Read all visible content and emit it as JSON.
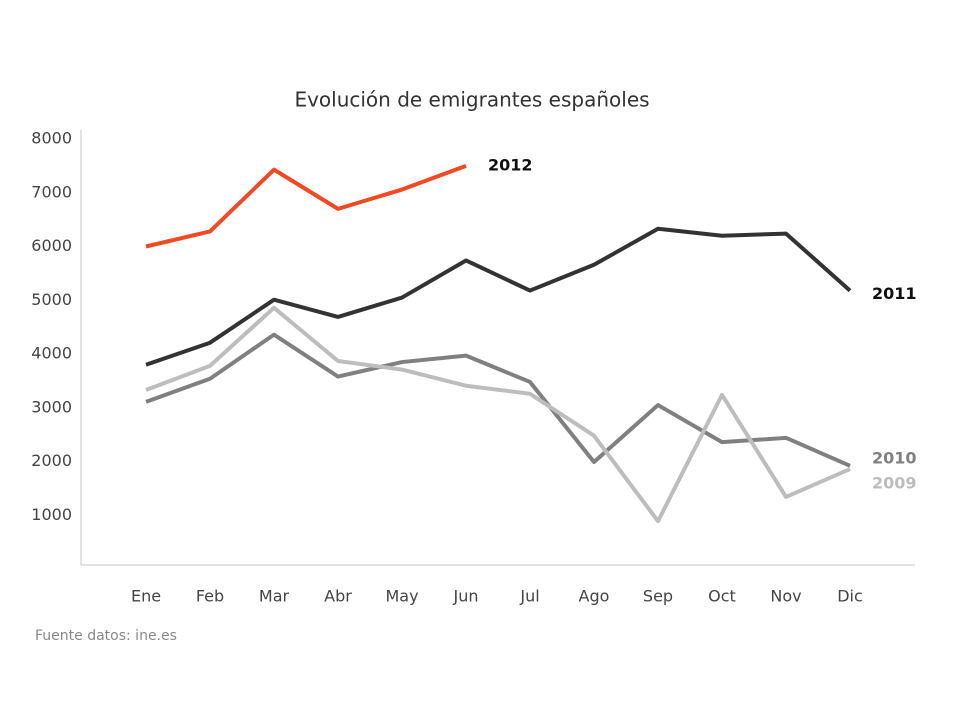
{
  "chart_data": {
    "type": "line",
    "title": "Evolución de emigrantes españoles",
    "source": "Fuente datos: ine.es",
    "categories": [
      "Ene",
      "Feb",
      "Mar",
      "Abr",
      "May",
      "Jun",
      "Jul",
      "Ago",
      "Sep",
      "Oct",
      "Nov",
      "Dic"
    ],
    "series": [
      {
        "name": "2012",
        "color": "#f04a23",
        "values": [
          6000,
          6280,
          7430,
          6700,
          7060,
          7500,
          null,
          null,
          null,
          null,
          null,
          null
        ]
      },
      {
        "name": "2011",
        "color": "#333333",
        "values": [
          3800,
          4210,
          5010,
          4690,
          5050,
          5740,
          5180,
          5660,
          6330,
          6200,
          6240,
          5180
        ]
      },
      {
        "name": "2010",
        "color": "#808080",
        "values": [
          3110,
          3540,
          4360,
          3580,
          3850,
          3970,
          3480,
          1990,
          3050,
          2360,
          2440,
          1920
        ]
      },
      {
        "name": "2009",
        "color": "#bdbdbd",
        "values": [
          3330,
          3780,
          4860,
          3870,
          3710,
          3410,
          3260,
          2480,
          890,
          3240,
          1340,
          1860
        ]
      }
    ],
    "ylim": [
      0,
      8000
    ],
    "yticks": [
      1000,
      2000,
      3000,
      4000,
      5000,
      6000,
      7000,
      8000
    ],
    "grid": false
  }
}
